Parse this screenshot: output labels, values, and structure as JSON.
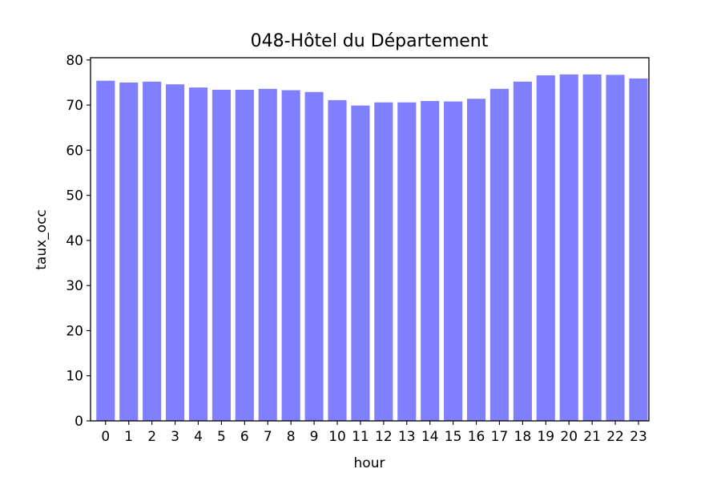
{
  "chart_data": {
    "type": "bar",
    "title": "048-Hôtel du Département",
    "xlabel": "hour",
    "ylabel": "taux_occ",
    "categories": [
      "0",
      "1",
      "2",
      "3",
      "4",
      "5",
      "6",
      "7",
      "8",
      "9",
      "10",
      "11",
      "12",
      "13",
      "14",
      "15",
      "16",
      "17",
      "18",
      "19",
      "20",
      "21",
      "22",
      "23"
    ],
    "values": [
      75.4,
      75.0,
      75.2,
      74.6,
      73.9,
      73.4,
      73.4,
      73.6,
      73.3,
      72.9,
      71.1,
      69.9,
      70.6,
      70.6,
      70.9,
      70.8,
      71.4,
      73.6,
      75.2,
      76.6,
      76.8,
      76.8,
      76.7,
      75.9
    ],
    "ylim": [
      0,
      80.5
    ],
    "yticks": [
      0,
      10,
      20,
      30,
      40,
      50,
      60,
      70,
      80
    ],
    "bar_color": "#8080ff",
    "grid": false
  }
}
